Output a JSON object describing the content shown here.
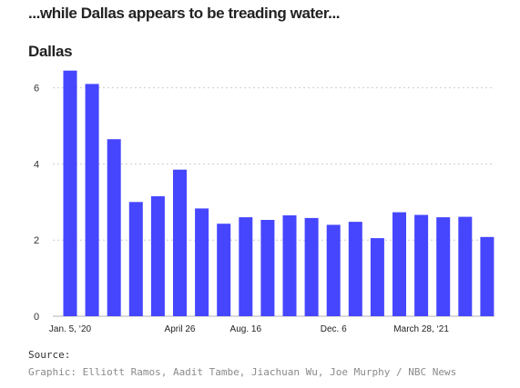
{
  "headline": "...while Dallas appears to be treading water...",
  "chart_data": {
    "type": "bar",
    "title": "Dallas",
    "xlabel": "",
    "ylabel": "",
    "ylim": [
      0,
      7
    ],
    "yticks": [
      0,
      2,
      4,
      6
    ],
    "grid": true,
    "bar_color": "#4646ff",
    "x_tick_labels": [
      {
        "index": 0,
        "label": "Jan. 5, ‘20"
      },
      {
        "index": 5,
        "label": "April 26"
      },
      {
        "index": 8,
        "label": "Aug. 16"
      },
      {
        "index": 12,
        "label": "Dec. 6"
      },
      {
        "index": 16,
        "label": "March 28, ‘21"
      }
    ],
    "values": [
      6.45,
      6.1,
      4.65,
      3.0,
      3.15,
      3.85,
      2.83,
      2.43,
      2.6,
      2.53,
      2.65,
      2.58,
      2.4,
      2.48,
      2.05,
      2.73,
      2.66,
      2.6,
      2.61,
      2.08
    ]
  },
  "footer": {
    "source_label": "Source:",
    "credit": "Graphic: Elliott Ramos, Aadit Tambe, Jiachuan Wu, Joe Murphy / NBC News"
  }
}
